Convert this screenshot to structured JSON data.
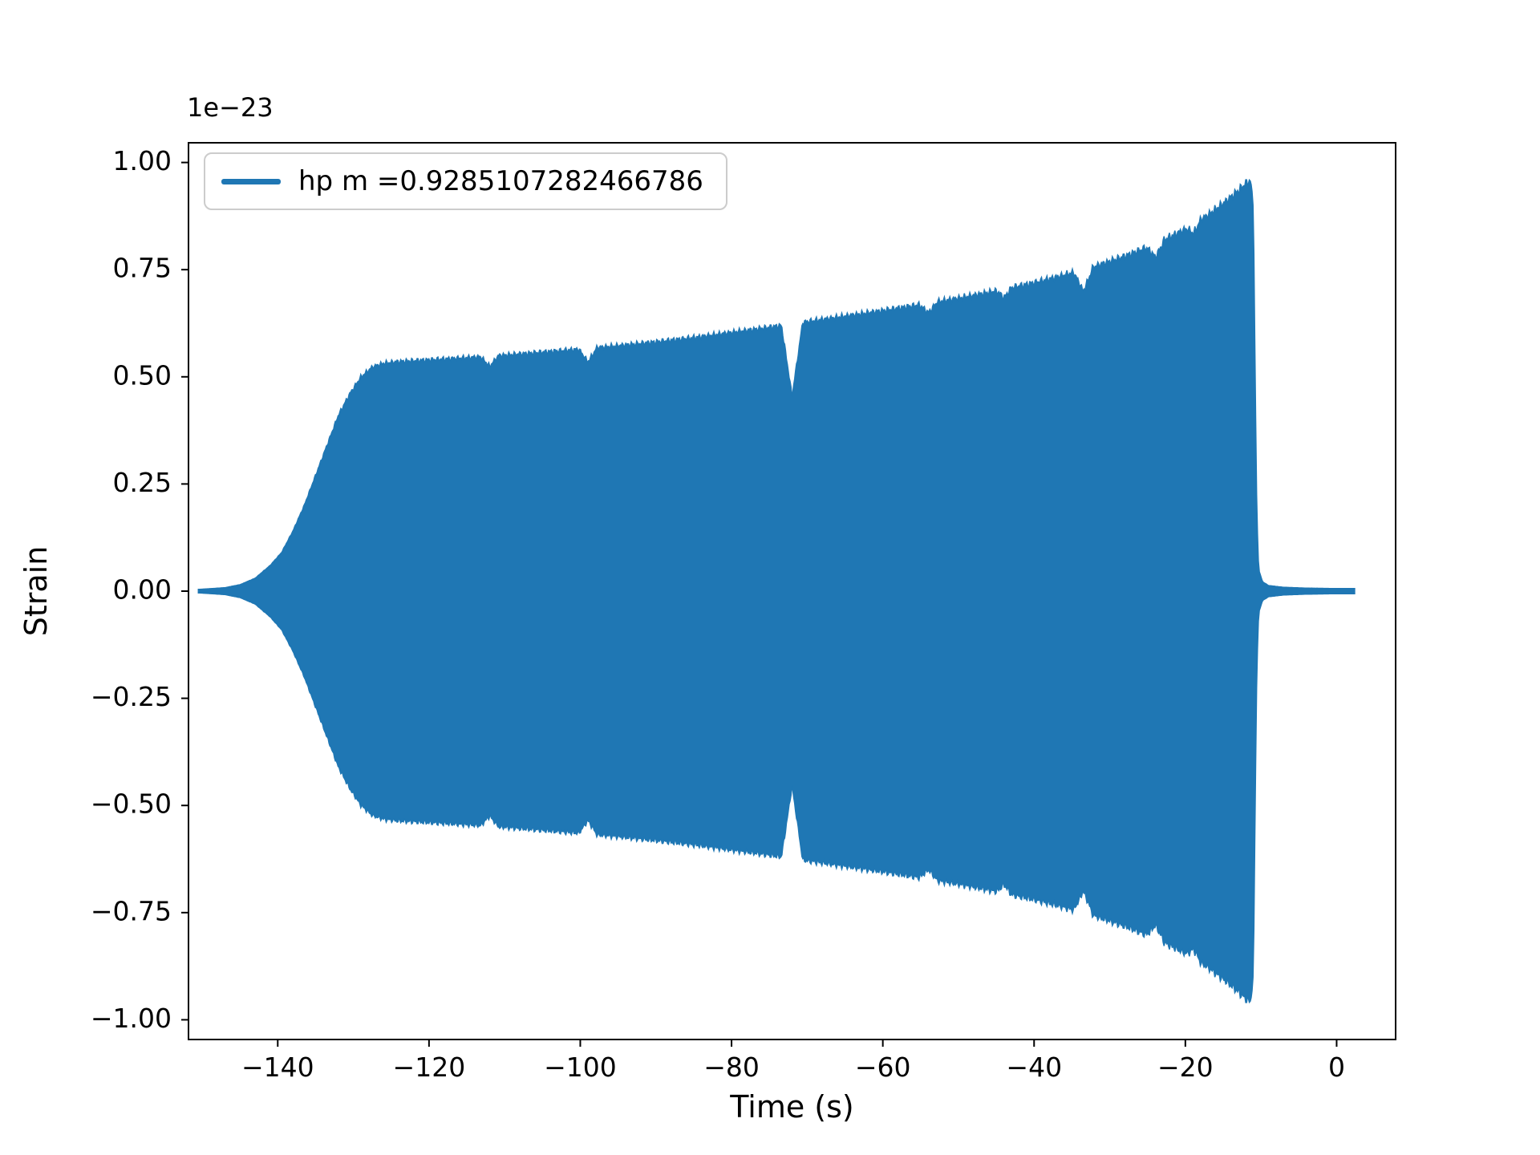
{
  "chart_data": {
    "type": "line",
    "title": "",
    "xlabel": "Time (s)",
    "ylabel": "Strain",
    "offset_text": "1e−23",
    "legend_label": "hp m =0.9285107282466786",
    "legend_position": "upper left",
    "grid": false,
    "line_color": "#1f77b4",
    "xlim": [
      -151.8,
      7.8
    ],
    "ylim": [
      -1.046,
      1.046
    ],
    "x_ticks": [
      {
        "v": -140,
        "label": "−140"
      },
      {
        "v": -120,
        "label": "−120"
      },
      {
        "v": -100,
        "label": "−100"
      },
      {
        "v": -80,
        "label": "−80"
      },
      {
        "v": -60,
        "label": "−60"
      },
      {
        "v": -40,
        "label": "−40"
      },
      {
        "v": -20,
        "label": "−20"
      },
      {
        "v": 0,
        "label": "0"
      }
    ],
    "y_ticks": [
      {
        "v": 1.0,
        "label": "1.00"
      },
      {
        "v": 0.75,
        "label": "0.75"
      },
      {
        "v": 0.5,
        "label": "0.50"
      },
      {
        "v": 0.25,
        "label": "0.25"
      },
      {
        "v": 0.0,
        "label": "0.00"
      },
      {
        "v": -0.25,
        "label": "−0.25"
      },
      {
        "v": -0.5,
        "label": "−0.50"
      },
      {
        "v": -0.75,
        "label": "−0.75"
      },
      {
        "v": -1.0,
        "label": "−1.00"
      }
    ],
    "signal": {
      "t_start": -150.5,
      "t_end": 2.5,
      "merger_t": -11.0
    },
    "envelope": [
      [
        -150.5,
        0.004
      ],
      [
        -147,
        0.008
      ],
      [
        -145,
        0.015
      ],
      [
        -143,
        0.03
      ],
      [
        -141,
        0.06
      ],
      [
        -139.5,
        0.09
      ],
      [
        -138,
        0.14
      ],
      [
        -136.5,
        0.2
      ],
      [
        -135,
        0.27
      ],
      [
        -133.5,
        0.34
      ],
      [
        -132,
        0.41
      ],
      [
        -130.5,
        0.46
      ],
      [
        -129,
        0.5
      ],
      [
        -127.5,
        0.523
      ],
      [
        -126,
        0.532
      ],
      [
        -124,
        0.536
      ],
      [
        -120,
        0.54
      ],
      [
        -115,
        0.545
      ],
      [
        -110,
        0.551
      ],
      [
        -105,
        0.558
      ],
      [
        -100,
        0.565
      ],
      [
        -95,
        0.573
      ],
      [
        -90,
        0.582
      ],
      [
        -85,
        0.592
      ],
      [
        -80,
        0.604
      ],
      [
        -75,
        0.616
      ],
      [
        -70,
        0.629
      ],
      [
        -65,
        0.642
      ],
      [
        -60,
        0.655
      ],
      [
        -55,
        0.669
      ],
      [
        -50,
        0.684
      ],
      [
        -45,
        0.701
      ],
      [
        -40,
        0.72
      ],
      [
        -36,
        0.738
      ],
      [
        -32,
        0.758
      ],
      [
        -28,
        0.782
      ],
      [
        -24,
        0.81
      ],
      [
        -20,
        0.845
      ],
      [
        -17,
        0.878
      ],
      [
        -14.5,
        0.912
      ],
      [
        -13,
        0.935
      ],
      [
        -12,
        0.952
      ],
      [
        -11.4,
        0.958
      ],
      [
        -11.0,
        0.9
      ],
      [
        -10.8,
        0.55
      ],
      [
        -10.55,
        0.18
      ],
      [
        -10.3,
        0.05
      ],
      [
        -9.8,
        0.022
      ],
      [
        -9,
        0.013
      ],
      [
        -7,
        0.009
      ],
      [
        -4,
        0.007
      ],
      [
        0,
        0.006
      ],
      [
        2.5,
        0.006
      ]
    ],
    "notches": [
      {
        "t": -112,
        "a": 0.525,
        "width": 1.2
      },
      {
        "t": -99,
        "a": 0.535,
        "width": 1.2
      },
      {
        "t": -72,
        "a": 0.455,
        "width": 1.4
      },
      {
        "t": -54,
        "a": 0.65,
        "width": 1.2
      },
      {
        "t": -44,
        "a": 0.685,
        "width": 1.0
      },
      {
        "t": -33.5,
        "a": 0.7,
        "width": 1.3
      },
      {
        "t": -24,
        "a": 0.78,
        "width": 1.2
      },
      {
        "t": -19,
        "a": 0.835,
        "width": 1.0
      }
    ]
  }
}
